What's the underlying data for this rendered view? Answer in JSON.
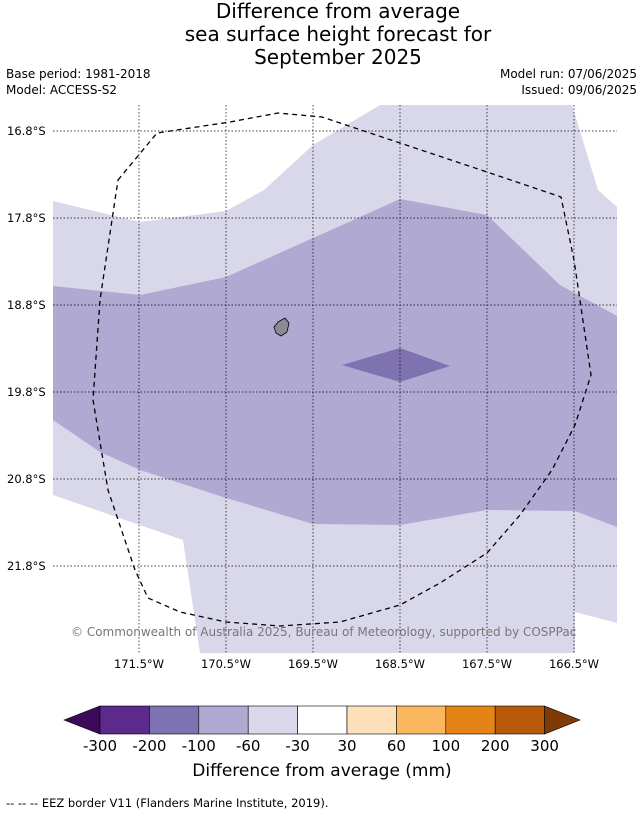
{
  "title_lines": [
    "Difference from average",
    "sea surface height forecast for",
    "September 2025"
  ],
  "base_period": "Base period: 1981-2018",
  "model": "Model: ACCESS-S2",
  "model_run": "Model run: 07/06/2025",
  "issued": "Issued: 09/06/2025",
  "lat_labels": [
    "16.8°S",
    "17.8°S",
    "18.8°S",
    "19.8°S",
    "20.8°S",
    "21.8°S"
  ],
  "lon_labels": [
    "171.5°W",
    "170.5°W",
    "169.5°W",
    "168.5°W",
    "167.5°W",
    "166.5°W"
  ],
  "copyright": "© Commonwealth of Australia 2025, Bureau of Meteorology, supported by COSPPac",
  "colorbar": {
    "ticks": [
      "-300",
      "-200",
      "-100",
      "-60",
      "-30",
      "30",
      "60",
      "100",
      "200",
      "300"
    ],
    "colors": [
      "#3d0a59",
      "#5b2a8c",
      "#7f72b0",
      "#b0a9d2",
      "#d9d8ea",
      "#ffffff",
      "#fde0b9",
      "#fbb75f",
      "#e48316",
      "#b6590a",
      "#7f3b07"
    ],
    "title": "Difference from average (mm)"
  },
  "footer": "--  --  -- EEZ border V11 (Flanders Marine Institute, 2019)."
}
